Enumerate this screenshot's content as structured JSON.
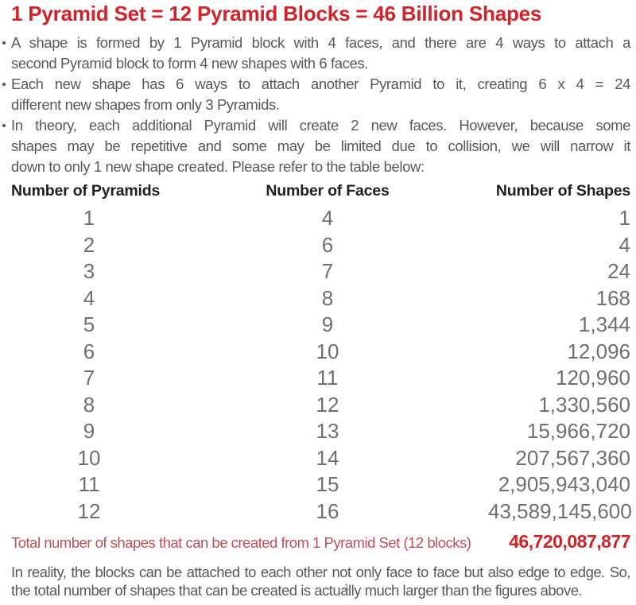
{
  "title": "1 Pyramid Set = 12 Pyramid Blocks = 46 Billion Shapes",
  "bullets": [
    {
      "lines": [
        {
          "text": "A shape is formed by 1 Pyramid block with 4 faces, and there are 4 ways to attach a",
          "justify": true
        },
        {
          "text": "second Pyramid block to form 4 new shapes with 6 faces.",
          "justify": false
        }
      ]
    },
    {
      "lines": [
        {
          "text": "Each new shape has 6 ways to attach another Pyramid to it, creating 6 x 4 = 24",
          "justify": true
        },
        {
          "text": "different new shapes from only 3 Pyramids.",
          "justify": false
        }
      ]
    },
    {
      "lines": [
        {
          "text": "In theory, each additional Pyramid will create 2 new faces. However, because some",
          "justify": true
        },
        {
          "text": "shapes may be repetitive and some may be limited due to collision, we will narrow it",
          "justify": true
        },
        {
          "text": "down to only 1 new shape created. Please refer to the table below:",
          "justify": false
        }
      ]
    }
  ],
  "table": {
    "headers": [
      "Number of Pyramids",
      "Number of Faces",
      "Number of Shapes"
    ],
    "rows": [
      [
        "1",
        "4",
        "1"
      ],
      [
        "2",
        "6",
        "4"
      ],
      [
        "3",
        "7",
        "24"
      ],
      [
        "4",
        "8",
        "168"
      ],
      [
        "5",
        "9",
        "1,344"
      ],
      [
        "6",
        "10",
        "12,096"
      ],
      [
        "7",
        "11",
        "120,960"
      ],
      [
        "8",
        "12",
        "1,330,560"
      ],
      [
        "9",
        "13",
        "15,966,720"
      ],
      [
        "10",
        "14",
        "207,567,360"
      ],
      [
        "11",
        "15",
        "2,905,943,040"
      ],
      [
        "12",
        "16",
        "43,589,145,600"
      ]
    ]
  },
  "total": {
    "label": "Total number of shapes that can be created from 1 Pyramid Set (12 blocks)",
    "value": "46,720,087,877"
  },
  "footnote": {
    "lines": [
      {
        "text": "In reality, the blocks can be attached to each other not only face to face but also edge to edge. So,",
        "justify": true
      },
      {
        "text": "the total number of shapes that can be created is actually much larger than the figures above.",
        "justify": false
      }
    ]
  },
  "page_number": "1",
  "colors": {
    "title_red": "#d2232a",
    "body_gray": "#59595c",
    "header_black": "#202023",
    "value_gray": "#707074",
    "total_label_red": "#c04f56",
    "total_value_red": "#cf2128"
  }
}
